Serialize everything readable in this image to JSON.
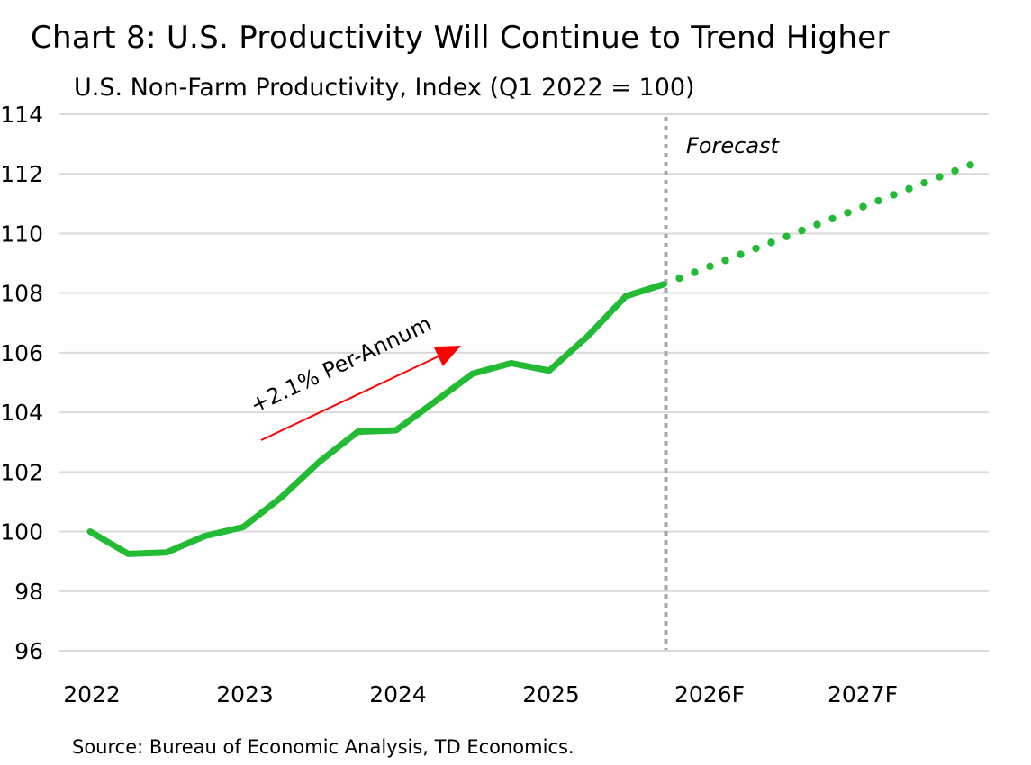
{
  "title": "Chart 8: U.S. Productivity Will Continue to Trend Higher",
  "subtitle": "U.S. Non-Farm Productivity, Index (Q1 2022 = 100)",
  "source": "Source: Bureau of Economic Analysis, TD Economics.",
  "colors": {
    "series": "#22bb33",
    "annotation_arrow": "#ff0000",
    "grid": "#d9d9d9",
    "forecast_divider": "#a6a6a6"
  },
  "chart_data": {
    "type": "line",
    "title": "Chart 8: U.S. Productivity Will Continue to Trend Higher",
    "subtitle": "U.S. Non-Farm Productivity, Index (Q1 2022 = 100)",
    "xlabel": "",
    "ylabel": "",
    "x_tick_labels": [
      "2022",
      "2023",
      "2024",
      "2025",
      "2026F",
      "2027F"
    ],
    "y_ticks": [
      96,
      98,
      100,
      102,
      104,
      106,
      108,
      110,
      112,
      114
    ],
    "ylim": [
      96,
      114
    ],
    "grid": true,
    "series": [
      {
        "style": "solid",
        "x": [
          "2022Q1",
          "2022Q2",
          "2022Q3",
          "2022Q4",
          "2023Q1",
          "2023Q2",
          "2023Q3",
          "2023Q4",
          "2024Q1",
          "2024Q2",
          "2024Q3",
          "2024Q4",
          "2025Q1",
          "2025Q2",
          "2025Q3",
          "2025Q4"
        ],
        "values": [
          100.0,
          99.25,
          99.3,
          99.85,
          100.15,
          101.15,
          102.35,
          103.35,
          103.4,
          104.35,
          105.3,
          105.65,
          105.4,
          106.55,
          107.9,
          108.3
        ]
      },
      {
        "style": "dotted",
        "x": [
          "2025Q4",
          "2026Q1",
          "2026Q2",
          "2026Q3",
          "2026Q4",
          "2027Q1",
          "2027Q2",
          "2027Q3",
          "2027Q4"
        ],
        "values": [
          108.3,
          108.8,
          109.3,
          109.8,
          110.3,
          110.8,
          111.3,
          111.8,
          112.3
        ]
      }
    ],
    "forecast_divider_x": "2025Q4",
    "annotations": [
      {
        "text": "Forecast"
      },
      {
        "text": "+2.1% Per-Annum"
      }
    ]
  }
}
